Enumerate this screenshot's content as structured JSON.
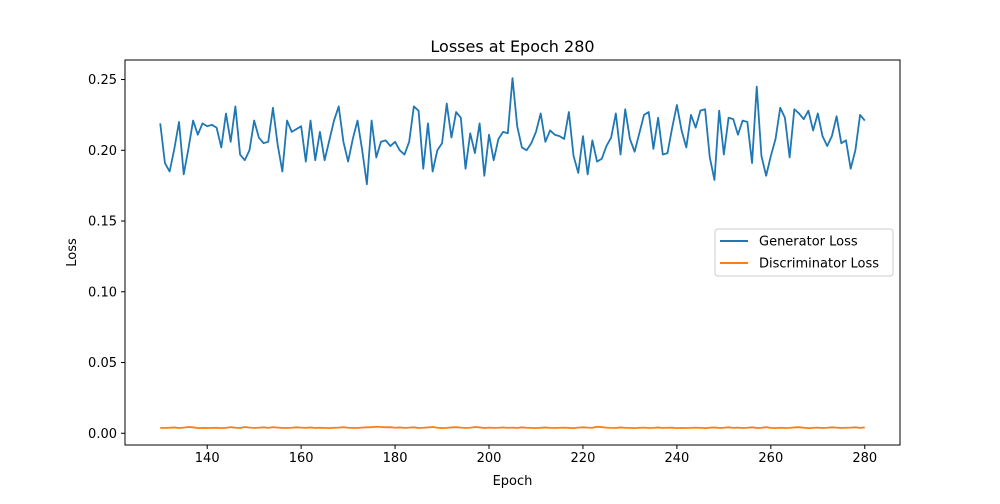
{
  "chart_data": {
    "type": "line",
    "title": "Losses at Epoch 280",
    "xlabel": "Epoch",
    "ylabel": "Loss",
    "xlim": [
      122.5,
      287.5
    ],
    "ylim": [
      -0.0083,
      0.2638
    ],
    "xticks": [
      140,
      160,
      180,
      200,
      220,
      240,
      260,
      280
    ],
    "xtick_labels": [
      "140",
      "160",
      "180",
      "200",
      "220",
      "240",
      "260",
      "280"
    ],
    "yticks": [
      0.0,
      0.05,
      0.1,
      0.15,
      0.2,
      0.25
    ],
    "ytick_labels": [
      "0.00",
      "0.05",
      "0.10",
      "0.15",
      "0.20",
      "0.25"
    ],
    "grid": false,
    "legend_position": "center-right",
    "x": [
      130,
      131,
      132,
      133,
      134,
      135,
      136,
      137,
      138,
      139,
      140,
      141,
      142,
      143,
      144,
      145,
      146,
      147,
      148,
      149,
      150,
      151,
      152,
      153,
      154,
      155,
      156,
      157,
      158,
      159,
      160,
      161,
      162,
      163,
      164,
      165,
      166,
      167,
      168,
      169,
      170,
      171,
      172,
      173,
      174,
      175,
      176,
      177,
      178,
      179,
      180,
      181,
      182,
      183,
      184,
      185,
      186,
      187,
      188,
      189,
      190,
      191,
      192,
      193,
      194,
      195,
      196,
      197,
      198,
      199,
      200,
      201,
      202,
      203,
      204,
      205,
      206,
      207,
      208,
      209,
      210,
      211,
      212,
      213,
      214,
      215,
      216,
      217,
      218,
      219,
      220,
      221,
      222,
      223,
      224,
      225,
      226,
      227,
      228,
      229,
      230,
      231,
      232,
      233,
      234,
      235,
      236,
      237,
      238,
      239,
      240,
      241,
      242,
      243,
      244,
      245,
      246,
      247,
      248,
      249,
      250,
      251,
      252,
      253,
      254,
      255,
      256,
      257,
      258,
      259,
      260,
      261,
      262,
      263,
      264,
      265,
      266,
      267,
      268,
      269,
      270,
      271,
      272,
      273,
      274,
      275,
      276,
      277,
      278,
      279,
      280
    ],
    "series": [
      {
        "name": "Generator Loss",
        "color": "#1f77b4",
        "values": [
          0.219,
          0.191,
          0.185,
          0.201,
          0.22,
          0.183,
          0.201,
          0.221,
          0.211,
          0.219,
          0.217,
          0.218,
          0.216,
          0.202,
          0.226,
          0.206,
          0.231,
          0.197,
          0.193,
          0.2,
          0.221,
          0.209,
          0.205,
          0.206,
          0.23,
          0.204,
          0.185,
          0.221,
          0.213,
          0.215,
          0.217,
          0.192,
          0.221,
          0.193,
          0.213,
          0.193,
          0.207,
          0.221,
          0.231,
          0.206,
          0.192,
          0.208,
          0.221,
          0.2,
          0.176,
          0.221,
          0.195,
          0.206,
          0.207,
          0.203,
          0.206,
          0.2,
          0.197,
          0.206,
          0.231,
          0.228,
          0.187,
          0.219,
          0.185,
          0.2,
          0.205,
          0.233,
          0.209,
          0.227,
          0.223,
          0.187,
          0.212,
          0.198,
          0.219,
          0.182,
          0.211,
          0.193,
          0.208,
          0.213,
          0.212,
          0.251,
          0.217,
          0.202,
          0.2,
          0.205,
          0.213,
          0.226,
          0.206,
          0.214,
          0.211,
          0.21,
          0.208,
          0.227,
          0.196,
          0.184,
          0.21,
          0.183,
          0.207,
          0.192,
          0.194,
          0.203,
          0.209,
          0.226,
          0.197,
          0.229,
          0.208,
          0.199,
          0.212,
          0.225,
          0.227,
          0.201,
          0.223,
          0.197,
          0.198,
          0.216,
          0.232,
          0.214,
          0.202,
          0.225,
          0.216,
          0.228,
          0.229,
          0.195,
          0.179,
          0.228,
          0.197,
          0.223,
          0.222,
          0.211,
          0.221,
          0.22,
          0.191,
          0.245,
          0.196,
          0.182,
          0.196,
          0.208,
          0.23,
          0.223,
          0.195,
          0.229,
          0.226,
          0.222,
          0.228,
          0.214,
          0.226,
          0.21,
          0.203,
          0.21,
          0.224,
          0.205,
          0.207,
          0.187,
          0.2,
          0.225,
          0.221
        ]
      },
      {
        "name": "Discriminator Loss",
        "color": "#ff7f0e",
        "values": [
          0.0038,
          0.0037,
          0.0039,
          0.0041,
          0.0037,
          0.004,
          0.0044,
          0.0042,
          0.0036,
          0.0038,
          0.0037,
          0.0038,
          0.0039,
          0.0036,
          0.0038,
          0.0043,
          0.0039,
          0.0037,
          0.0044,
          0.004,
          0.0038,
          0.0039,
          0.0042,
          0.0038,
          0.0043,
          0.004,
          0.0037,
          0.0038,
          0.0039,
          0.0042,
          0.004,
          0.0038,
          0.0041,
          0.0037,
          0.0039,
          0.0038,
          0.0036,
          0.0039,
          0.004,
          0.0043,
          0.0039,
          0.0038,
          0.0037,
          0.004,
          0.0042,
          0.0043,
          0.0046,
          0.0044,
          0.0042,
          0.0043,
          0.0039,
          0.0041,
          0.0038,
          0.004,
          0.0042,
          0.0037,
          0.0039,
          0.0041,
          0.0044,
          0.0039,
          0.0036,
          0.0038,
          0.0041,
          0.0043,
          0.004,
          0.0038,
          0.0039,
          0.0044,
          0.0041,
          0.0037,
          0.004,
          0.0038,
          0.0039,
          0.0041,
          0.0038,
          0.004,
          0.0037,
          0.0042,
          0.0039,
          0.0038,
          0.0036,
          0.0039,
          0.0041,
          0.0038,
          0.0037,
          0.0039,
          0.004,
          0.0038,
          0.0036,
          0.004,
          0.0042,
          0.004,
          0.0039,
          0.0046,
          0.0043,
          0.004,
          0.0038,
          0.0037,
          0.0041,
          0.0039,
          0.0038,
          0.0036,
          0.0039,
          0.004,
          0.0037,
          0.0038,
          0.0041,
          0.0037,
          0.0039,
          0.004,
          0.0036,
          0.0038,
          0.0037,
          0.0038,
          0.004,
          0.0038,
          0.0036,
          0.0039,
          0.0041,
          0.0037,
          0.0039,
          0.0042,
          0.0038,
          0.004,
          0.0037,
          0.0039,
          0.0042,
          0.0037,
          0.0039,
          0.0043,
          0.0038,
          0.0036,
          0.0039,
          0.0037,
          0.0038,
          0.0041,
          0.0043,
          0.0039,
          0.0036,
          0.0038,
          0.004,
          0.0037,
          0.0039,
          0.0042,
          0.004,
          0.0037,
          0.0039,
          0.004,
          0.0042,
          0.0038,
          0.0041
        ]
      }
    ]
  }
}
